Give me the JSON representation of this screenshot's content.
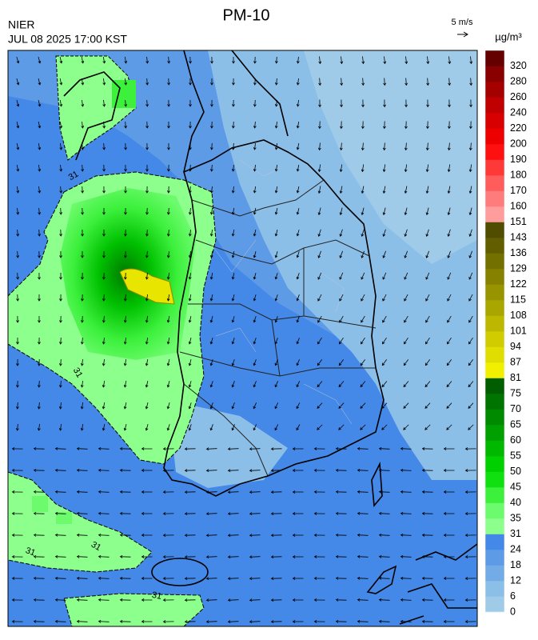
{
  "header": {
    "title": "PM-10",
    "agency": "NIER",
    "timestamp": "JUL 08 2025 17:00 KST"
  },
  "wind_key": {
    "label": "5 m/s"
  },
  "legend": {
    "unit": "µg/m³",
    "ticks": [
      0,
      6,
      12,
      18,
      24,
      31,
      35,
      40,
      45,
      50,
      55,
      60,
      65,
      70,
      75,
      81,
      87,
      94,
      101,
      108,
      115,
      122,
      129,
      136,
      143,
      151,
      160,
      170,
      180,
      190,
      200,
      220,
      240,
      260,
      280,
      320
    ],
    "colors": [
      "#a0cbe8",
      "#8cbfe8",
      "#73abe6",
      "#5e9be6",
      "#4488e8",
      "#8cff8c",
      "#6cfb6c",
      "#3cf03c",
      "#10e010",
      "#00cf00",
      "#00b800",
      "#00a000",
      "#008a00",
      "#007400",
      "#005e00",
      "#f0f000",
      "#e0de00",
      "#d0cc00",
      "#bcb800",
      "#aaa600",
      "#989400",
      "#868200",
      "#747000",
      "#625e00",
      "#504c00",
      "#ff9c9c",
      "#ff7c7c",
      "#ff5c5c",
      "#ff3838",
      "#ff1010",
      "#ee0000",
      "#d80000",
      "#c00000",
      "#a40000",
      "#880000",
      "#640000"
    ]
  },
  "map": {
    "contour_labels": [
      31,
      31,
      31,
      31,
      31
    ]
  }
}
